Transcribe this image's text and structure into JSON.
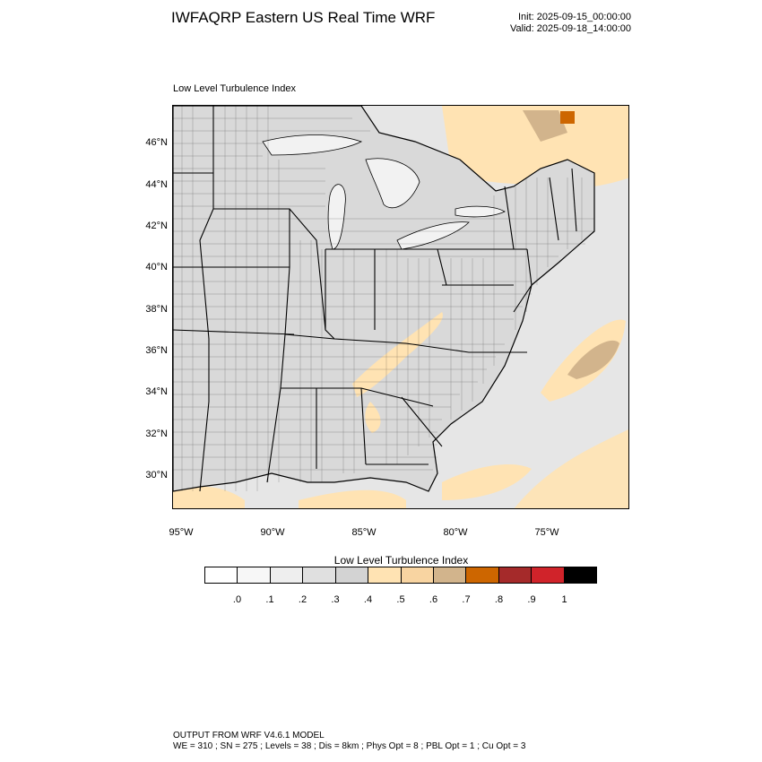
{
  "header": {
    "title": "IWFAQRP Eastern US Real Time WRF",
    "init": "Init: 2025-09-15_00:00:00",
    "valid": "Valid: 2025-09-18_14:00:00"
  },
  "map": {
    "subtitle": "Low Level Turbulence Index",
    "lat_labels": [
      "46°N",
      "44°N",
      "42°N",
      "40°N",
      "38°N",
      "36°N",
      "34°N",
      "32°N",
      "30°N"
    ],
    "lon_labels": [
      "95°W",
      "90°W",
      "85°W",
      "80°W",
      "75°W"
    ],
    "colors": {
      "land_fill": "#d9d9d9",
      "water_fill": "#e6e6e6",
      "lake_fill": "#f2f2f2",
      "high_index_fill": "#ffe3b3"
    }
  },
  "colorbar": {
    "title": "Low Level Turbulence Index",
    "labels": [
      ".0",
      ".1",
      ".2",
      ".3",
      ".4",
      ".5",
      ".6",
      ".7",
      ".8",
      ".9",
      "1"
    ],
    "colors": [
      "#ffffff",
      "#f7f7f7",
      "#eeeeee",
      "#e0e0e0",
      "#d3d3d3",
      "#ffe3b3",
      "#f8d4a1",
      "#d2b48c",
      "#cd6600",
      "#a52a2a",
      "#d0232a",
      "#000000"
    ]
  },
  "footer": {
    "line1": "OUTPUT FROM WRF V4.6.1 MODEL",
    "line2": "WE = 310 ; SN = 275 ; Levels = 38 ; Dis = 8km ; Phys Opt = 8 ; PBL Opt = 1 ; Cu Opt = 3"
  }
}
